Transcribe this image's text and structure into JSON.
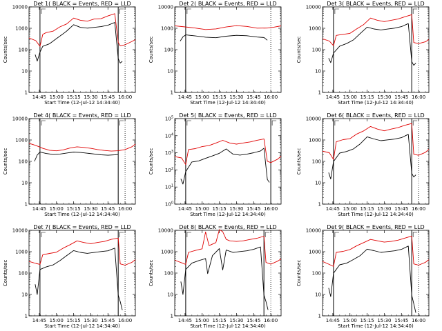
{
  "chart_data": [
    {
      "type": "line",
      "title": "Det 1( BLACK = Events, RED = LLD",
      "xlabel": "Start Time (12-Jul-12 14:34:40)",
      "ylabel": "Counts/sec",
      "yscale": "log",
      "ylim": [
        1,
        10000
      ],
      "ytick_labels": [
        "1",
        "10",
        "100",
        "1000",
        "10000"
      ],
      "xlim": [
        14.6,
        16.15
      ],
      "xtick_labels": [
        "14:45",
        "15:00",
        "15:15",
        "15:30",
        "15:45",
        "16:00"
      ],
      "markers": [
        14.76,
        15.9,
        16.0
      ],
      "series": [
        {
          "color": "#e00000",
          "x": [
            14.6,
            14.7,
            14.76,
            14.8,
            14.85,
            14.95,
            15.05,
            15.15,
            15.25,
            15.35,
            15.45,
            15.55,
            15.65,
            15.75,
            15.85,
            15.9,
            15.93,
            16.0,
            16.1,
            16.15
          ],
          "y": [
            350,
            260,
            140,
            500,
            600,
            700,
            1100,
            1500,
            2800,
            2200,
            2000,
            2500,
            2600,
            3500,
            4500,
            200,
            140,
            160,
            230,
            280
          ]
        },
        {
          "color": "#000000",
          "x": [
            14.6,
            14.66,
            14.69,
            14.72,
            14.76,
            14.8,
            14.9,
            15.0,
            15.1,
            15.15,
            15.25,
            15.35,
            15.45,
            15.55,
            15.65,
            15.75,
            15.85,
            15.9,
            15.93,
            15.96
          ],
          "y": [
            null,
            null,
            60,
            30,
            80,
            150,
            200,
            350,
            600,
            800,
            1600,
            1200,
            1100,
            1200,
            1300,
            1500,
            2000,
            40,
            25,
            30
          ]
        }
      ]
    },
    {
      "type": "line",
      "title": "Det 2( BLACK = Events, RED = LLD",
      "xlabel": "Start Time (12-Jul-12 14:34:40)",
      "ylabel": "Counts/sec",
      "yscale": "log",
      "ylim": [
        1,
        10000
      ],
      "ytick_labels": [
        "1",
        "10",
        "100",
        "1000",
        "10000"
      ],
      "xlim": [
        14.6,
        16.15
      ],
      "xtick_labels": [
        "14:45",
        "15:00",
        "15:15",
        "15:30",
        "15:45",
        "16:00"
      ],
      "markers": [
        14.76,
        16.0
      ],
      "series": [
        {
          "color": "#e00000",
          "x": [
            14.6,
            14.75,
            14.9,
            15.05,
            15.2,
            15.35,
            15.5,
            15.65,
            15.8,
            15.95,
            16.05,
            16.15
          ],
          "y": [
            1300,
            1150,
            1000,
            850,
            900,
            1100,
            1250,
            1150,
            950,
            950,
            1050,
            1200
          ]
        },
        {
          "color": "#000000",
          "x": [
            14.68,
            14.72,
            14.76,
            14.9,
            15.05,
            15.2,
            15.35,
            15.5,
            15.65,
            15.8,
            15.9,
            15.95
          ],
          "y": [
            250,
            400,
            500,
            450,
            400,
            380,
            450,
            500,
            480,
            420,
            400,
            300
          ]
        }
      ]
    },
    {
      "type": "line",
      "title": "Det 3( BLACK = Events, RED = LLD",
      "xlabel": "Start Time (12-Jul-12 14:34:40)",
      "ylabel": "Counts/sec",
      "yscale": "log",
      "ylim": [
        1,
        10000
      ],
      "ytick_labels": [
        "1",
        "10",
        "100",
        "1000",
        "10000"
      ],
      "xlim": [
        14.6,
        16.15
      ],
      "xtick_labels": [
        "14:45",
        "15:00",
        "15:15",
        "15:30",
        "15:45",
        "16:00"
      ],
      "markers": [
        14.76,
        15.9,
        16.0
      ],
      "series": [
        {
          "color": "#e00000",
          "x": [
            14.6,
            14.7,
            14.76,
            14.8,
            14.9,
            15.0,
            15.1,
            15.2,
            15.3,
            15.4,
            15.5,
            15.6,
            15.7,
            15.8,
            15.9,
            15.93,
            16.0,
            16.1,
            16.15
          ],
          "y": [
            320,
            250,
            150,
            450,
            500,
            550,
            900,
            1400,
            2800,
            2200,
            1900,
            2200,
            2500,
            3200,
            4000,
            200,
            180,
            220,
            280
          ]
        },
        {
          "color": "#000000",
          "x": [
            14.69,
            14.72,
            14.76,
            14.85,
            14.95,
            15.05,
            15.15,
            15.25,
            15.35,
            15.45,
            15.55,
            15.65,
            15.75,
            15.85,
            15.9,
            15.93,
            15.96
          ],
          "y": [
            40,
            25,
            70,
            150,
            200,
            300,
            600,
            1200,
            1000,
            900,
            1000,
            1100,
            1300,
            1800,
            30,
            20,
            25
          ]
        }
      ]
    },
    {
      "type": "line",
      "title": "Det 4( BLACK = Events, RED = LLD",
      "xlabel": "Start Time (12-Jul-12 14:34:40)",
      "ylabel": "Counts/sec",
      "yscale": "log",
      "ylim": [
        1,
        10000
      ],
      "ytick_labels": [
        "1",
        "10",
        "100",
        "1000",
        "10000"
      ],
      "xlim": [
        14.6,
        16.15
      ],
      "xtick_labels": [
        "14:45",
        "15:00",
        "15:15",
        "15:30",
        "15:45",
        "16:00"
      ],
      "markers": [
        14.76,
        15.9,
        16.0
      ],
      "series": [
        {
          "color": "#e00000",
          "x": [
            14.6,
            14.7,
            14.8,
            14.9,
            15.0,
            15.1,
            15.2,
            15.3,
            15.4,
            15.5,
            15.6,
            15.7,
            15.8,
            15.9,
            16.0,
            16.1,
            16.15
          ],
          "y": [
            700,
            550,
            400,
            320,
            300,
            330,
            400,
            450,
            420,
            380,
            330,
            300,
            280,
            290,
            330,
            450,
            600
          ]
        },
        {
          "color": "#000000",
          "x": [
            14.68,
            14.72,
            14.76,
            14.85,
            14.95,
            15.05,
            15.15,
            15.25,
            15.35,
            15.45,
            15.55,
            15.65,
            15.75,
            15.85,
            15.9
          ],
          "y": [
            100,
            200,
            280,
            240,
            220,
            230,
            260,
            290,
            280,
            260,
            240,
            220,
            210,
            220,
            230
          ]
        }
      ]
    },
    {
      "type": "line",
      "title": "Det 5( BLACK = Events, RED = LLD",
      "xlabel": "Start Time (12-Jul-12 14:34:40)",
      "ylabel": "Counts/sec",
      "yscale": "log",
      "ylim": [
        1,
        100000
      ],
      "ytick_labels": [
        "10^0",
        "10^1",
        "10^2",
        "10^3",
        "10^4",
        "10^5"
      ],
      "xlim": [
        14.6,
        16.15
      ],
      "xtick_labels": [
        "14:45",
        "15:00",
        "15:15",
        "15:30",
        "15:45",
        "16:00"
      ],
      "markers": [
        14.76,
        16.0
      ],
      "series": [
        {
          "color": "#e00000",
          "x": [
            14.6,
            14.7,
            14.76,
            14.8,
            14.9,
            15.0,
            15.1,
            15.2,
            15.3,
            15.4,
            15.5,
            15.6,
            15.7,
            15.8,
            15.9,
            15.95,
            16.0,
            16.1,
            16.15
          ],
          "y": [
            600,
            500,
            200,
            1500,
            1700,
            2200,
            2500,
            3500,
            5000,
            3500,
            3000,
            3500,
            4000,
            5000,
            6000,
            300,
            250,
            400,
            600
          ]
        },
        {
          "color": "#000000",
          "x": [
            14.69,
            14.72,
            14.76,
            14.85,
            14.95,
            15.05,
            15.15,
            15.25,
            15.35,
            15.45,
            15.55,
            15.65,
            15.75,
            15.85,
            15.9,
            15.95,
            15.98
          ],
          "y": [
            30,
            15,
            80,
            300,
            350,
            500,
            700,
            1000,
            1800,
            900,
            800,
            900,
            1100,
            1400,
            2000,
            30,
            20
          ]
        }
      ]
    },
    {
      "type": "line",
      "title": "Det 6( BLACK = Events, RED = LLD",
      "xlabel": "Start Time (12-Jul-12 14:34:40)",
      "ylabel": "Counts/sec",
      "yscale": "log",
      "ylim": [
        1,
        10000
      ],
      "ytick_labels": [
        "1",
        "10",
        "100",
        "1000",
        "10000"
      ],
      "xlim": [
        14.6,
        16.15
      ],
      "xtick_labels": [
        "14:45",
        "15:00",
        "15:15",
        "15:30",
        "15:45",
        "16:00"
      ],
      "markers": [
        14.76,
        15.9,
        16.0
      ],
      "series": [
        {
          "color": "#e00000",
          "x": [
            14.6,
            14.7,
            14.76,
            14.8,
            14.9,
            15.0,
            15.1,
            15.2,
            15.3,
            15.4,
            15.5,
            15.6,
            15.7,
            15.8,
            15.9,
            15.93,
            16.0,
            16.1,
            16.15
          ],
          "y": [
            300,
            250,
            120,
            800,
            1000,
            1100,
            1800,
            2500,
            4000,
            3000,
            2500,
            3000,
            3500,
            4500,
            5500,
            200,
            180,
            250,
            350
          ]
        },
        {
          "color": "#000000",
          "x": [
            14.69,
            14.72,
            14.76,
            14.85,
            14.95,
            15.05,
            15.15,
            15.25,
            15.35,
            15.45,
            15.55,
            15.65,
            15.75,
            15.85,
            15.9,
            15.93,
            15.96
          ],
          "y": [
            30,
            15,
            100,
            250,
            300,
            400,
            700,
            1500,
            1200,
            1000,
            1100,
            1200,
            1400,
            2000,
            30,
            20,
            25
          ]
        }
      ]
    },
    {
      "type": "line",
      "title": "Det 7( BLACK = Events, RED = LLD",
      "xlabel": "Start Time (12-Jul-12 14:34:40)",
      "ylabel": "Counts/sec",
      "yscale": "log",
      "ylim": [
        1,
        10000
      ],
      "ytick_labels": [
        "1",
        "10",
        "100",
        "1000",
        "10000"
      ],
      "xlim": [
        14.6,
        16.15
      ],
      "xtick_labels": [
        "14:45",
        "15:00",
        "15:15",
        "15:30",
        "15:45",
        "16:00"
      ],
      "markers": [
        14.76,
        15.9,
        16.0
      ],
      "series": [
        {
          "color": "#e00000",
          "x": [
            14.6,
            14.7,
            14.76,
            14.8,
            14.9,
            15.0,
            15.1,
            15.2,
            15.3,
            15.4,
            15.5,
            15.6,
            15.7,
            15.8,
            15.9,
            15.93,
            16.0,
            16.1,
            16.15
          ],
          "y": [
            350,
            280,
            250,
            700,
            800,
            900,
            1400,
            2000,
            3000,
            2500,
            2200,
            2500,
            2800,
            3500,
            4000,
            250,
            220,
            300,
            400
          ]
        },
        {
          "color": "#000000",
          "x": [
            14.69,
            14.72,
            14.76,
            14.85,
            14.95,
            15.05,
            15.15,
            15.25,
            15.35,
            15.45,
            15.55,
            15.65,
            15.75,
            15.85,
            15.9,
            15.93,
            15.96
          ],
          "y": [
            30,
            10,
            150,
            200,
            250,
            400,
            700,
            1200,
            1000,
            900,
            1000,
            1100,
            1200,
            1600,
            10,
            5,
            2
          ]
        }
      ]
    },
    {
      "type": "line",
      "title": "Det 8( BLACK = Events, RED = LLD",
      "xlabel": "Start Time (12-Jul-12 14:34:40)",
      "ylabel": "Counts/sec",
      "yscale": "log",
      "ylim": [
        1,
        10000
      ],
      "ytick_labels": [
        "1",
        "10",
        "100",
        "1000",
        "10000"
      ],
      "xlim": [
        14.6,
        16.15
      ],
      "xtick_labels": [
        "14:45",
        "15:00",
        "15:15",
        "15:30",
        "15:45",
        "16:00"
      ],
      "markers": [
        14.76,
        15.9,
        16.0
      ],
      "series": [
        {
          "color": "#e00000",
          "x": [
            14.6,
            14.7,
            14.76,
            14.8,
            14.9,
            15.0,
            15.05,
            15.1,
            15.2,
            15.25,
            15.3,
            15.35,
            15.4,
            15.5,
            15.6,
            15.7,
            15.8,
            15.9,
            15.93,
            16.0,
            16.1,
            16.15
          ],
          "y": [
            400,
            300,
            250,
            900,
            1100,
            1300,
            8000,
            1800,
            2500,
            10000,
            8000,
            3500,
            3000,
            2800,
            3000,
            3500,
            4000,
            5000,
            300,
            250,
            350,
            450
          ]
        },
        {
          "color": "#000000",
          "x": [
            14.69,
            14.72,
            14.76,
            14.85,
            14.95,
            15.05,
            15.08,
            15.15,
            15.25,
            15.3,
            15.35,
            15.45,
            15.55,
            15.65,
            15.75,
            15.85,
            15.9,
            15.93,
            15.96
          ],
          "y": [
            40,
            10,
            150,
            300,
            400,
            500,
            100,
            700,
            1500,
            150,
            1300,
            1000,
            1100,
            1200,
            1400,
            1800,
            10,
            5,
            2
          ]
        }
      ]
    },
    {
      "type": "line",
      "title": "Det 9( BLACK = Events, RED = LLD",
      "xlabel": "Start Time (12-Jul-12 14:34:40)",
      "ylabel": "Counts/sec",
      "yscale": "log",
      "ylim": [
        1,
        10000
      ],
      "ytick_labels": [
        "1",
        "10",
        "100",
        "1000",
        "10000"
      ],
      "xlim": [
        14.6,
        16.15
      ],
      "xtick_labels": [
        "14:45",
        "15:00",
        "15:15",
        "15:30",
        "15:45",
        "16:00"
      ],
      "markers": [
        14.76,
        15.9,
        16.0
      ],
      "series": [
        {
          "color": "#e00000",
          "x": [
            14.6,
            14.7,
            14.76,
            14.8,
            14.9,
            15.0,
            15.1,
            15.2,
            15.3,
            15.4,
            15.5,
            15.6,
            15.7,
            15.8,
            15.9,
            15.93,
            16.0,
            16.1,
            16.15
          ],
          "y": [
            350,
            250,
            200,
            900,
            1000,
            1200,
            1800,
            2500,
            3500,
            3000,
            2600,
            2800,
            3200,
            4000,
            5000,
            250,
            220,
            300,
            400
          ]
        },
        {
          "color": "#000000",
          "x": [
            14.69,
            14.72,
            14.76,
            14.85,
            14.95,
            15.05,
            15.15,
            15.25,
            15.35,
            15.45,
            15.55,
            15.65,
            15.75,
            15.85,
            15.9,
            15.93,
            15.96
          ],
          "y": [
            20,
            8,
            100,
            250,
            300,
            450,
            700,
            1400,
            1200,
            1000,
            1100,
            1200,
            1400,
            2000,
            10,
            4,
            1.5
          ]
        }
      ]
    }
  ]
}
